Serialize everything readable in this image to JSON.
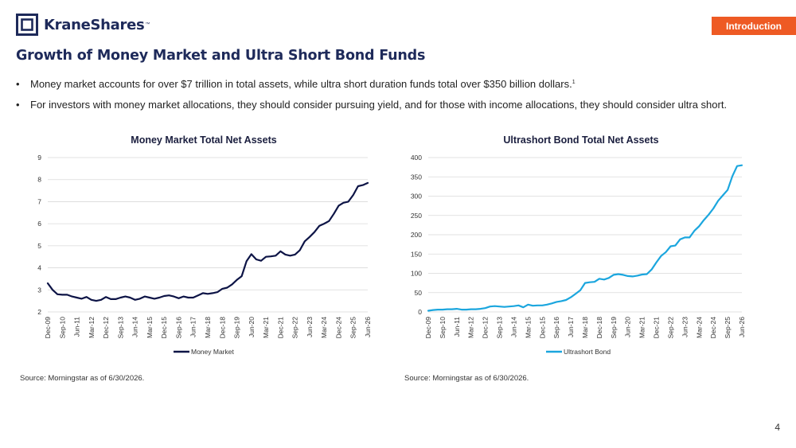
{
  "header": {
    "logo_text": "KraneShares",
    "logo_tm": "™",
    "section_tag": "Introduction"
  },
  "title": "Growth of Money Market and Ultra Short Bond Funds",
  "bullets": [
    "Money market accounts for over $7 trillion in total assets, while ultra short duration funds total over $350 billion dollars.",
    "For investors with money market allocations, they should consider pursuing yield, and for those with income allocations, they should consider ultra short."
  ],
  "bullet_footnote": "1",
  "colors": {
    "accent": "#ee5a24",
    "navy": "#0d1446",
    "cyan": "#1ba6de",
    "grid": "#d9d9d9"
  },
  "chart_data": [
    {
      "type": "line",
      "title": "Money Market Total Net Assets",
      "xlabel": "",
      "ylabel": "",
      "ylim": [
        2,
        9
      ],
      "yticks": [
        2,
        3,
        4,
        5,
        6,
        7,
        8,
        9
      ],
      "grid": true,
      "legend_position": "bottom",
      "x_tick_labels": [
        "Dec-09",
        "Sep-10",
        "Jun-11",
        "Mar-12",
        "Dec-12",
        "Sep-13",
        "Jun-14",
        "Mar-15",
        "Dec-15",
        "Sep-16",
        "Jun-17",
        "Mar-18",
        "Dec-18",
        "Sep-19",
        "Jun-20",
        "Mar-21",
        "Dec-21",
        "Sep-22",
        "Jun-23",
        "Mar-24",
        "Dec-24",
        "Sep-25",
        "Jun-26"
      ],
      "x": [
        "Dec-09",
        "Mar-10",
        "Jun-10",
        "Sep-10",
        "Dec-10",
        "Mar-11",
        "Jun-11",
        "Sep-11",
        "Dec-11",
        "Mar-12",
        "Jun-12",
        "Sep-12",
        "Dec-12",
        "Mar-13",
        "Jun-13",
        "Sep-13",
        "Dec-13",
        "Mar-14",
        "Jun-14",
        "Sep-14",
        "Dec-14",
        "Mar-15",
        "Jun-15",
        "Sep-15",
        "Dec-15",
        "Mar-16",
        "Jun-16",
        "Sep-16",
        "Dec-16",
        "Mar-17",
        "Jun-17",
        "Sep-17",
        "Dec-17",
        "Mar-18",
        "Jun-18",
        "Sep-18",
        "Dec-18",
        "Mar-19",
        "Jun-19",
        "Sep-19",
        "Dec-19",
        "Mar-20",
        "Jun-20",
        "Sep-20",
        "Dec-20",
        "Mar-21",
        "Jun-21",
        "Sep-21",
        "Dec-21",
        "Mar-22",
        "Jun-22",
        "Sep-22",
        "Dec-22",
        "Mar-23",
        "Jun-23",
        "Sep-23",
        "Dec-23",
        "Mar-24",
        "Jun-24",
        "Sep-24",
        "Dec-24",
        "Mar-25",
        "Jun-25",
        "Sep-25",
        "Dec-25",
        "Mar-26",
        "Jun-26"
      ],
      "series": [
        {
          "name": "Money Market",
          "color": "#0d1446",
          "values": [
            3.3,
            3.0,
            2.8,
            2.78,
            2.78,
            2.7,
            2.65,
            2.6,
            2.68,
            2.55,
            2.5,
            2.55,
            2.68,
            2.58,
            2.58,
            2.65,
            2.7,
            2.65,
            2.55,
            2.6,
            2.7,
            2.65,
            2.6,
            2.65,
            2.72,
            2.75,
            2.7,
            2.62,
            2.7,
            2.65,
            2.65,
            2.75,
            2.85,
            2.82,
            2.85,
            2.9,
            3.05,
            3.1,
            3.25,
            3.45,
            3.62,
            4.3,
            4.62,
            4.38,
            4.32,
            4.5,
            4.52,
            4.55,
            4.75,
            4.6,
            4.55,
            4.6,
            4.8,
            5.2,
            5.4,
            5.62,
            5.9,
            6.0,
            6.12,
            6.45,
            6.82,
            6.95,
            7.0,
            7.3,
            7.7,
            7.75,
            7.85
          ]
        }
      ]
    },
    {
      "type": "line",
      "title": "Ultrashort Bond Total Net Assets",
      "xlabel": "",
      "ylabel": "",
      "ylim": [
        0,
        400
      ],
      "yticks": [
        0,
        50,
        100,
        150,
        200,
        250,
        300,
        350,
        400
      ],
      "grid": true,
      "legend_position": "bottom",
      "x_tick_labels": [
        "Dec-09",
        "Sep-10",
        "Jun-11",
        "Mar-12",
        "Dec-12",
        "Sep-13",
        "Jun-14",
        "Mar-15",
        "Dec-15",
        "Sep-16",
        "Jun-17",
        "Mar-18",
        "Dec-18",
        "Sep-19",
        "Jun-20",
        "Mar-21",
        "Dec-21",
        "Sep-22",
        "Jun-23",
        "Mar-24",
        "Dec-24",
        "Sep-25",
        "Jun-26"
      ],
      "x": [
        "Dec-09",
        "Mar-10",
        "Jun-10",
        "Sep-10",
        "Dec-10",
        "Mar-11",
        "Jun-11",
        "Sep-11",
        "Dec-11",
        "Mar-12",
        "Jun-12",
        "Sep-12",
        "Dec-12",
        "Mar-13",
        "Jun-13",
        "Sep-13",
        "Dec-13",
        "Mar-14",
        "Jun-14",
        "Sep-14",
        "Dec-14",
        "Mar-15",
        "Jun-15",
        "Sep-15",
        "Dec-15",
        "Mar-16",
        "Jun-16",
        "Sep-16",
        "Dec-16",
        "Mar-17",
        "Jun-17",
        "Sep-17",
        "Dec-17",
        "Mar-18",
        "Jun-18",
        "Sep-18",
        "Dec-18",
        "Mar-19",
        "Jun-19",
        "Sep-19",
        "Dec-19",
        "Mar-20",
        "Jun-20",
        "Sep-20",
        "Dec-20",
        "Mar-21",
        "Jun-21",
        "Sep-21",
        "Dec-21",
        "Mar-22",
        "Jun-22",
        "Sep-22",
        "Dec-22",
        "Mar-23",
        "Jun-23",
        "Sep-23",
        "Dec-23",
        "Mar-24",
        "Jun-24",
        "Sep-24",
        "Dec-24",
        "Mar-25",
        "Jun-25",
        "Sep-25",
        "Dec-25",
        "Mar-26",
        "Jun-26"
      ],
      "series": [
        {
          "name": "Ultrashort Bond",
          "color": "#1ba6de",
          "values": [
            3,
            5,
            6,
            6,
            7,
            7,
            8,
            6,
            6,
            7,
            7,
            8,
            10,
            14,
            15,
            14,
            13,
            14,
            15,
            17,
            12,
            19,
            16,
            17,
            17,
            19,
            22,
            26,
            28,
            31,
            38,
            47,
            56,
            75,
            77,
            78,
            86,
            84,
            88,
            96,
            98,
            96,
            93,
            92,
            94,
            97,
            98,
            110,
            128,
            145,
            155,
            170,
            172,
            188,
            193,
            193,
            210,
            222,
            238,
            252,
            268,
            288,
            302,
            316,
            352,
            378,
            380
          ]
        }
      ]
    }
  ],
  "sources": [
    "Source: Morningstar as of 6/30/2026.",
    "Source: Morningstar as of 6/30/2026."
  ],
  "page_number": "4"
}
